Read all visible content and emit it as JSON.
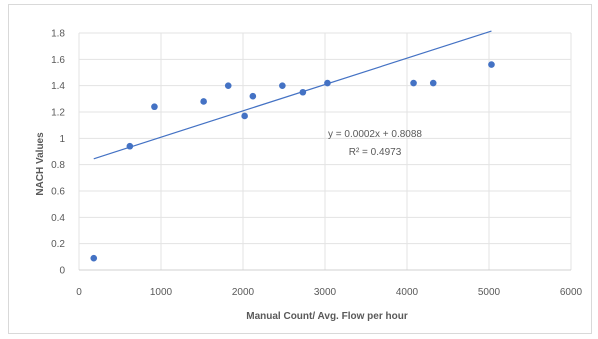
{
  "chart_data": {
    "type": "scatter",
    "title": "",
    "xlabel": "Manual Count/ Avg. Flow per hour",
    "ylabel": "NACH Values",
    "xlim": [
      0,
      6000
    ],
    "ylim": [
      0,
      1.8
    ],
    "xticks": [
      "0",
      "1000",
      "2000",
      "3000",
      "4000",
      "5000",
      "6000"
    ],
    "yticks": [
      "0",
      "0.2",
      "0.4",
      "0.6",
      "0.8",
      "1",
      "1.2",
      "1.4",
      "1.6",
      "1.8"
    ],
    "xtick_values": [
      0,
      1000,
      2000,
      3000,
      4000,
      5000,
      6000
    ],
    "ytick_values": [
      0,
      0.2,
      0.4,
      0.6,
      0.8,
      1.0,
      1.2,
      1.4,
      1.6,
      1.8
    ],
    "grid": true,
    "legend": "none",
    "series": [
      {
        "x": [
          180,
          620,
          920,
          1520,
          1820,
          2020,
          2120,
          2480,
          2730,
          3030,
          4080,
          4320,
          5030
        ],
        "y": [
          0.09,
          0.94,
          1.24,
          1.28,
          1.4,
          1.17,
          1.32,
          1.4,
          1.35,
          1.42,
          1.42,
          1.42,
          1.56
        ],
        "color": "#4472c4"
      }
    ],
    "trendline": {
      "slope": 0.0002,
      "intercept": 0.8088,
      "x_range": [
        180,
        5030
      ],
      "equation": "y = 0.0002x + 0.8088",
      "r_squared": "R² = 0.4973",
      "color": "#4472c4"
    }
  }
}
